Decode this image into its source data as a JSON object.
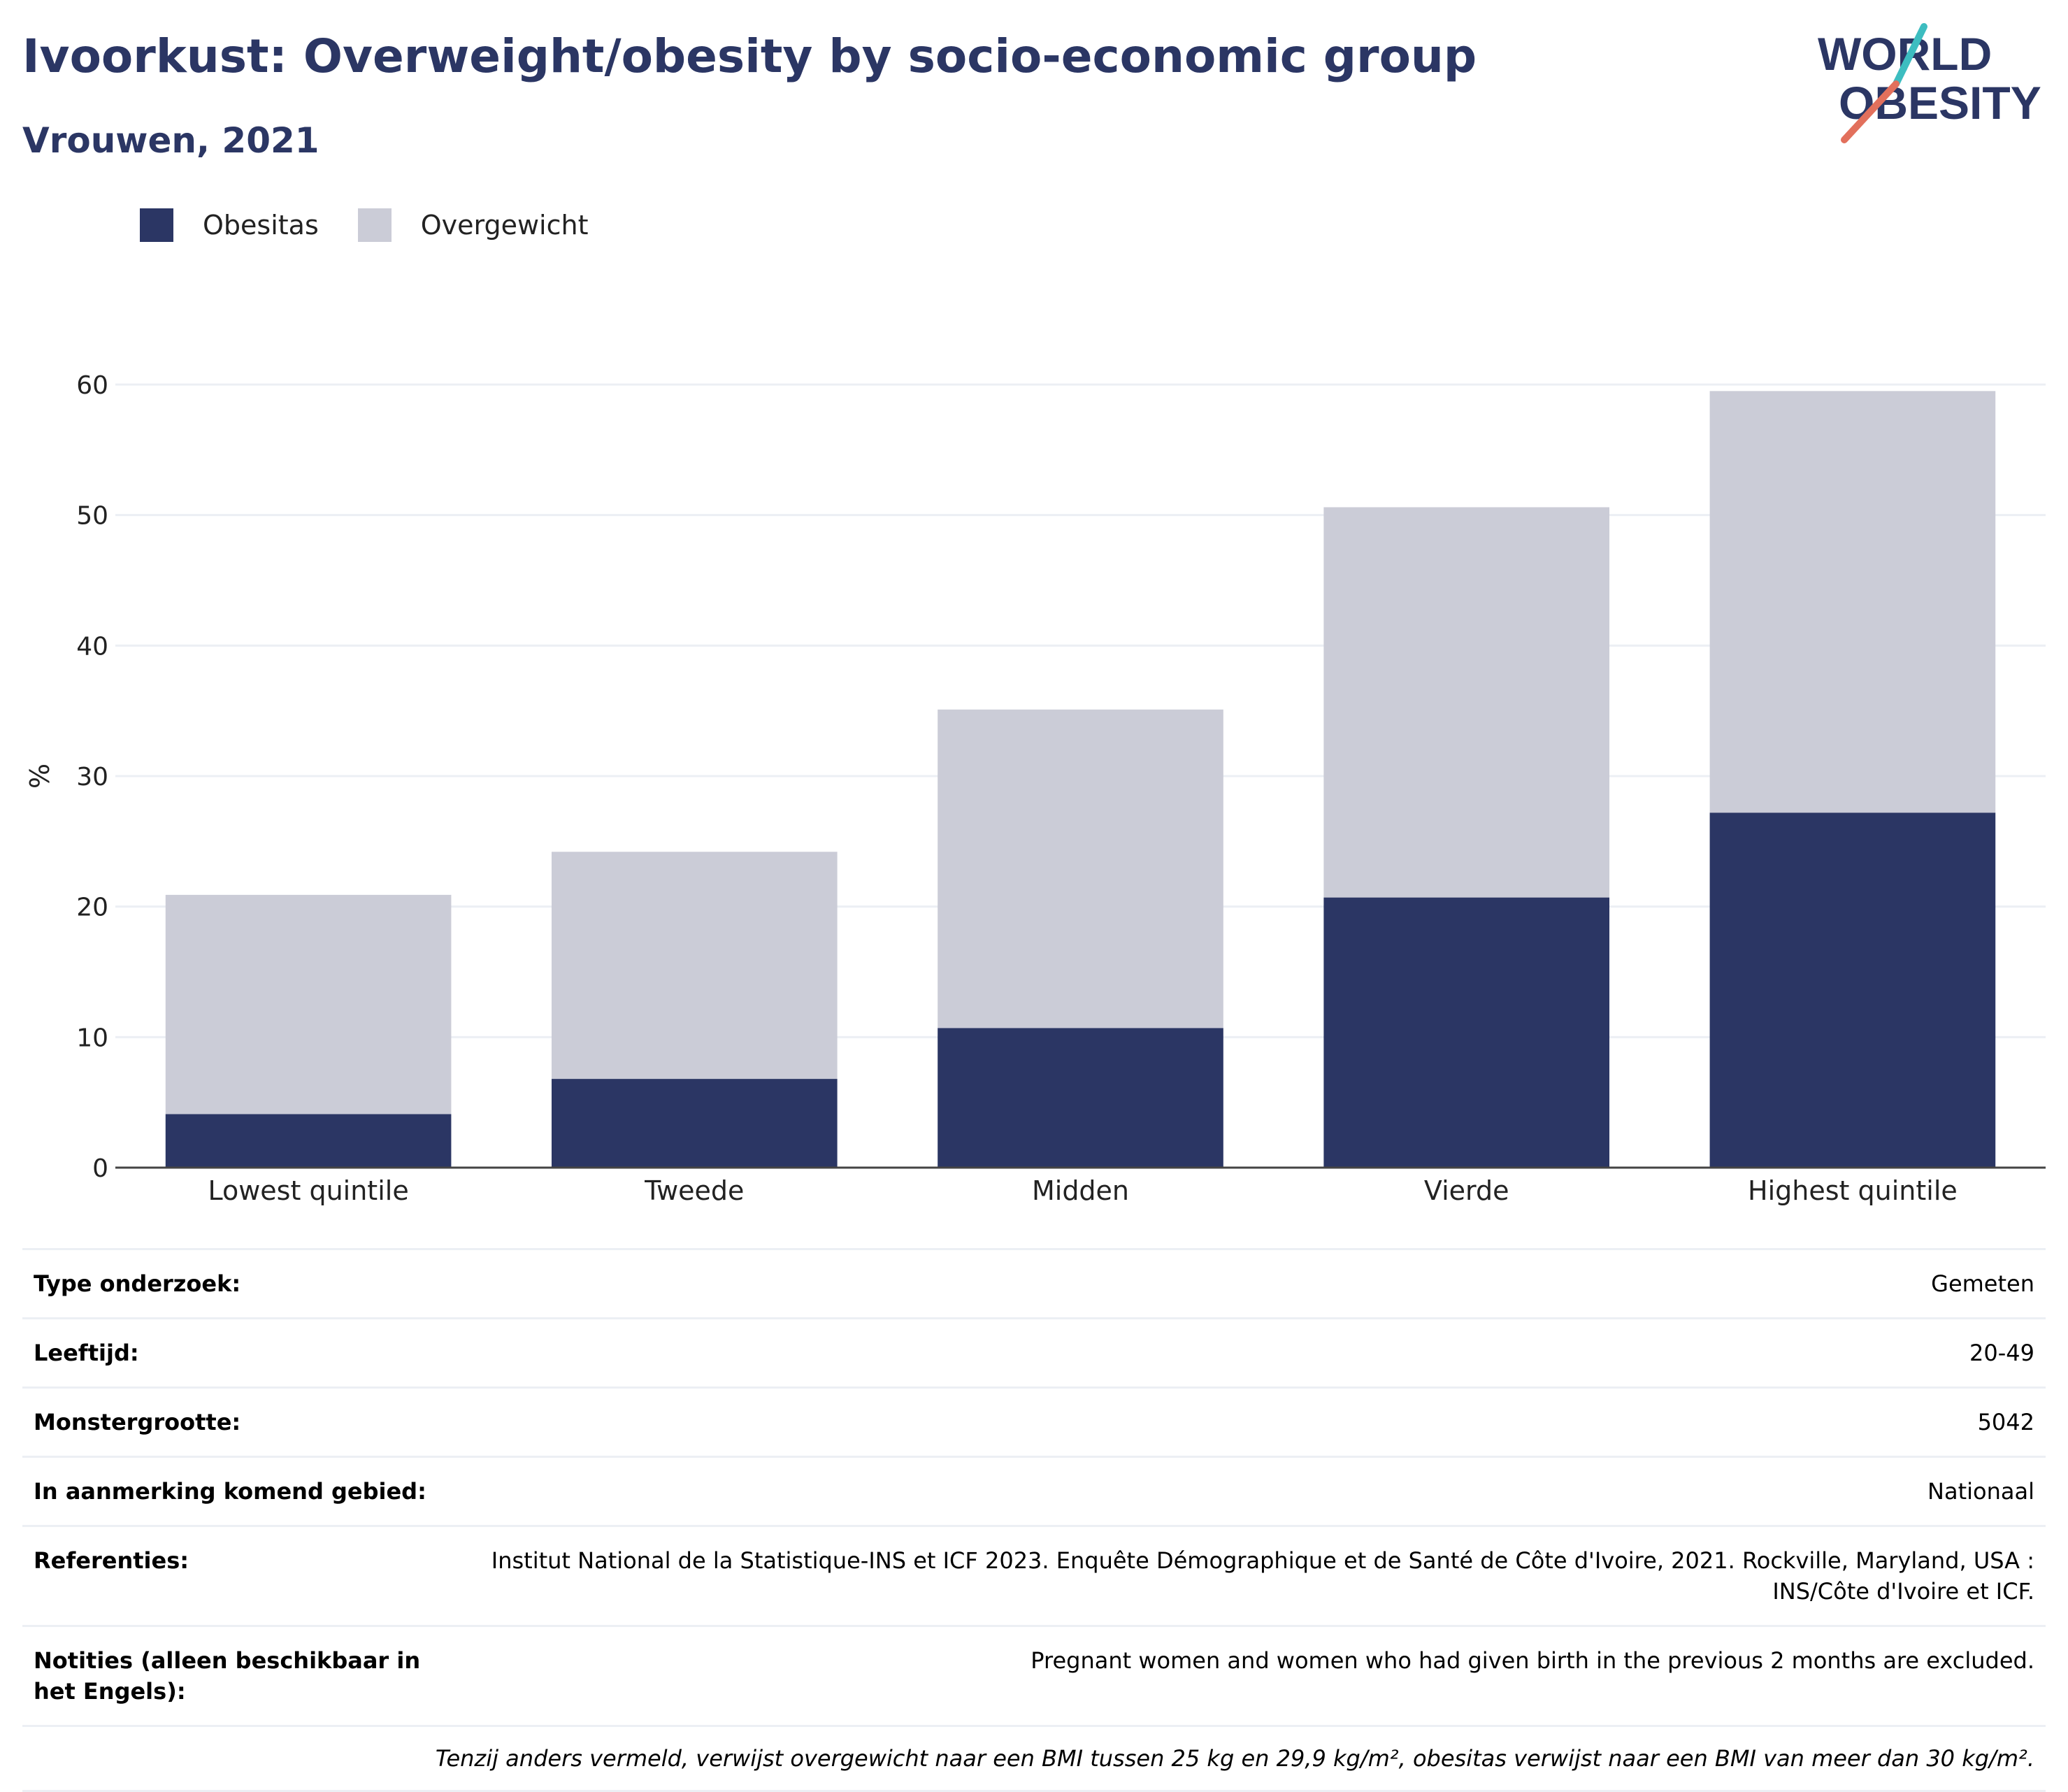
{
  "header": {
    "title": "Ivoorkust: Overweight/obesity by socio-economic group",
    "subtitle": "Vrouwen, 2021",
    "logo_line1": "WORLD",
    "logo_line2": "OBESITY"
  },
  "colors": {
    "obesity": "#2b3664",
    "overweight": "#cbccd7",
    "axis": "#444444",
    "grid": "#eceff4",
    "logo_teal": "#3dbdc0",
    "logo_coral": "#e2705c"
  },
  "legend": [
    {
      "label": "Obesitas",
      "color": "#2b3664"
    },
    {
      "label": "Overgewicht",
      "color": "#cbccd7"
    }
  ],
  "chart_data": {
    "type": "bar",
    "stacked": true,
    "categories": [
      "Lowest quintile",
      "Tweede",
      "Midden",
      "Vierde",
      "Highest quintile"
    ],
    "series": [
      {
        "name": "Obesitas",
        "values": [
          4.1,
          6.8,
          10.7,
          20.7,
          27.2
        ]
      },
      {
        "name": "Overgewicht",
        "values": [
          16.8,
          17.4,
          24.4,
          29.9,
          32.3
        ]
      }
    ],
    "ylabel": "%",
    "ylim": [
      0,
      60
    ],
    "yticks": [
      0,
      10,
      20,
      30,
      40,
      50,
      60
    ],
    "grid": true
  },
  "meta": [
    {
      "key": "Type onderzoek:",
      "value": "Gemeten"
    },
    {
      "key": "Leeftijd:",
      "value": "20-49"
    },
    {
      "key": "Monstergrootte:",
      "value": "5042"
    },
    {
      "key": "In aanmerking komend gebied:",
      "value": "Nationaal"
    },
    {
      "key": "Referenties:",
      "value": "Institut National de la Statistique-INS et ICF 2023. Enquête Démographique et de Santé de Côte d'Ivoire, 2021. Rockville, Maryland, USA : INS/Côte d'Ivoire et ICF."
    },
    {
      "key": "Notities (alleen beschikbaar in het Engels):",
      "value": "Pregnant women and women who had given birth in the previous 2 months are excluded."
    }
  ],
  "footnote": "Tenzij anders vermeld, verwijst overgewicht naar een BMI tussen 25 kg en 29,9 kg/m², obesitas verwijst naar een BMI van meer dan 30 kg/m²."
}
